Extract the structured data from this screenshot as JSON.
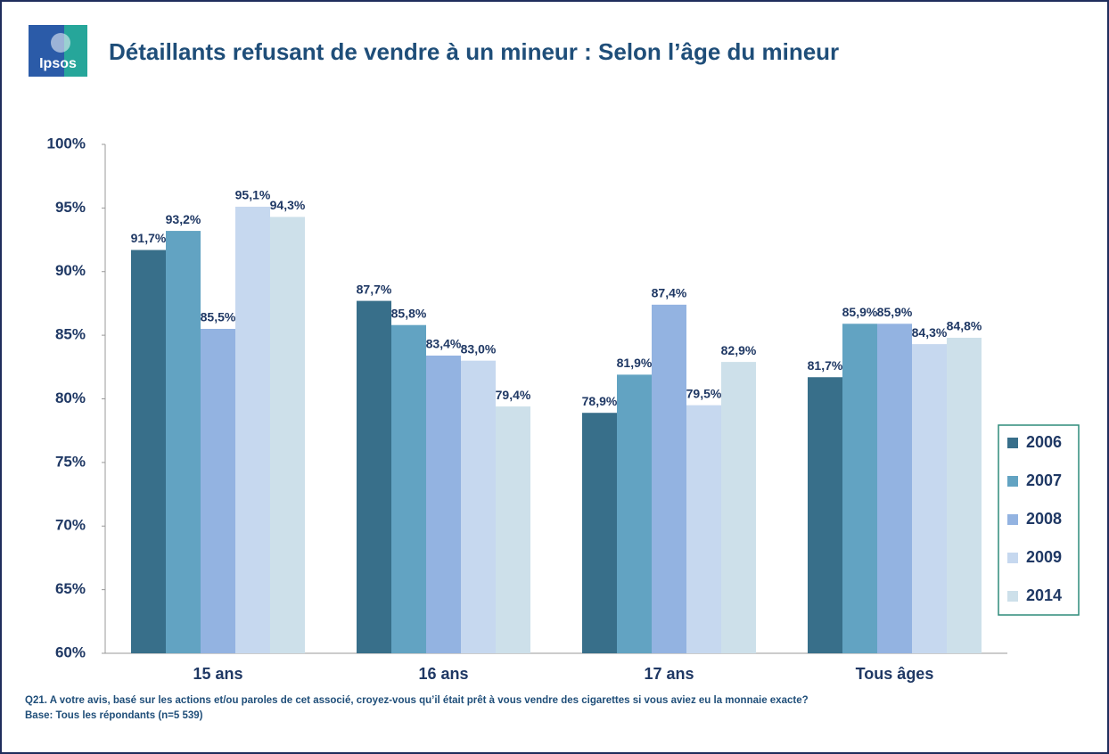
{
  "logo": "Ipsos",
  "chart_data": {
    "type": "bar",
    "title": "Détaillants refusant de vendre à un mineur : Selon l’âge du mineur",
    "categories": [
      "15 ans",
      "16 ans",
      "17 ans",
      "Tous âges"
    ],
    "series": [
      {
        "name": "2006",
        "color": "#386f8a",
        "values": [
          91.7,
          87.7,
          78.9,
          81.7
        ],
        "value_labels": [
          "91,7%",
          "87,7%",
          "78,9%",
          "81,7%"
        ]
      },
      {
        "name": "2007",
        "color": "#62a3c2",
        "values": [
          93.2,
          85.8,
          81.9,
          85.9
        ],
        "value_labels": [
          "93,2%",
          "85,8%",
          "81,9%",
          "85,9%"
        ]
      },
      {
        "name": "2008",
        "color": "#93b3e1",
        "values": [
          85.5,
          83.4,
          87.4,
          85.9
        ],
        "value_labels": [
          "85,5%",
          "83,4%",
          "87,4%",
          "85,9%"
        ]
      },
      {
        "name": "2009",
        "color": "#c6d8ef",
        "values": [
          95.1,
          83.0,
          79.5,
          84.3
        ],
        "value_labels": [
          "95,1%",
          "83,0%",
          "79,5%",
          "84,3%"
        ]
      },
      {
        "name": "2014",
        "color": "#cde0ea",
        "values": [
          94.3,
          79.4,
          82.9,
          84.8
        ],
        "value_labels": [
          "94,3%",
          "79,4%",
          "82,9%",
          "84,8%"
        ]
      }
    ],
    "ylim": [
      60,
      100
    ],
    "yticks": [
      {
        "value": 60,
        "label": "60%"
      },
      {
        "value": 65,
        "label": "65%"
      },
      {
        "value": 70,
        "label": "70%"
      },
      {
        "value": 75,
        "label": "75%"
      },
      {
        "value": 80,
        "label": "80%"
      },
      {
        "value": 85,
        "label": "85%"
      },
      {
        "value": 90,
        "label": "90%"
      },
      {
        "value": 95,
        "label": "95%"
      },
      {
        "value": 100,
        "label": "100%"
      }
    ],
    "grid": false,
    "legend": "right",
    "notes": [
      "Q21. A votre avis, basé sur les actions et/ou paroles de cet associé, croyez-vous qu’il était prêt à vous vendre des cigarettes si vous aviez eu la monnaie exacte?",
      "Base: Tous les répondants (n=5 539)"
    ]
  }
}
